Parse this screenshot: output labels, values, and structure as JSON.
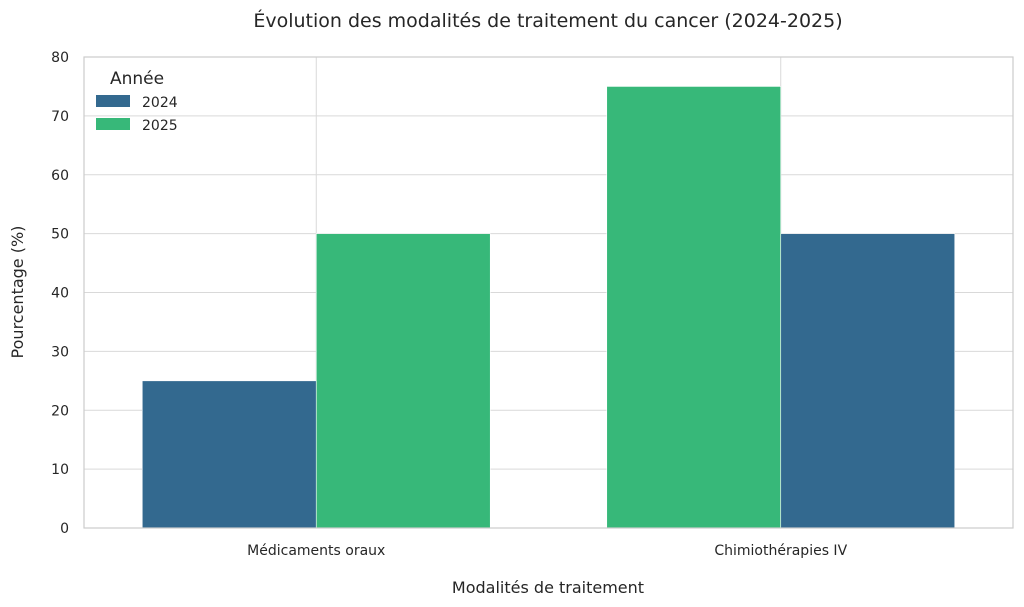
{
  "chart_data": {
    "type": "bar",
    "title": "Évolution des modalités de traitement du cancer (2024-2025)",
    "xlabel": "Modalités de traitement",
    "ylabel": "Pourcentage (%)",
    "categories": [
      "Médicaments oraux",
      "Chimiothérapies IV"
    ],
    "series": [
      {
        "name": "2024",
        "values": [
          25,
          50
        ],
        "color": "#33698f"
      },
      {
        "name": "2025",
        "values": [
          50,
          75
        ],
        "color": "#37b879"
      }
    ],
    "bar_order": [
      [
        0,
        1
      ],
      [
        1,
        0
      ]
    ],
    "ylim": [
      0,
      80
    ],
    "yticks": [
      0,
      10,
      20,
      30,
      40,
      50,
      60,
      70,
      80
    ],
    "grid": true,
    "legend": {
      "title": "Année",
      "placement": "top-left"
    }
  }
}
